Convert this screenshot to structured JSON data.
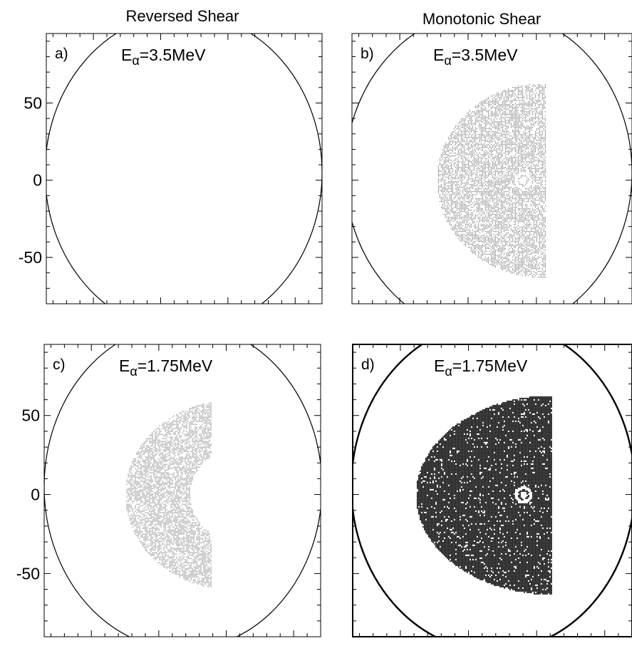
{
  "column_titles": [
    "Reversed Shear",
    "Monotonic Shear"
  ],
  "chart_data": [
    {
      "type": "scatter",
      "panel_label": "a)",
      "column": "Reversed Shear",
      "energy_label": {
        "prefix": "E",
        "subscript": "α",
        "suffix": "=3.5MeV"
      },
      "xlim": [
        165,
        370
      ],
      "ylim": [
        -80,
        95
      ],
      "xticks": [
        200,
        250,
        300,
        350
      ],
      "yticks": [
        -50,
        0,
        50
      ],
      "x_tick_labels_shown": false,
      "y_tick_labels_shown": true,
      "boundary_circle": {
        "center": [
          267,
          5
        ],
        "radius": 103
      },
      "lost_particle_region": null
    },
    {
      "type": "scatter",
      "panel_label": "b)",
      "column": "Monotonic Shear",
      "energy_label": {
        "prefix": "E",
        "subscript": "α",
        "suffix": "=3.5MeV"
      },
      "xlim": [
        165,
        370
      ],
      "ylim": [
        -80,
        95
      ],
      "xticks": [
        200,
        250,
        300,
        350
      ],
      "yticks": [
        -50,
        0,
        50
      ],
      "x_tick_labels_shown": false,
      "y_tick_labels_shown": false,
      "boundary_circle": {
        "center": [
          265,
          5
        ],
        "radius": 105
      },
      "lost_particle_region": {
        "shape": "half-disk",
        "center": [
          305,
          0
        ],
        "rx": 78,
        "ry": 63,
        "x_max": 307,
        "density": "light",
        "hole_center": [
          290,
          0
        ]
      }
    },
    {
      "type": "scatter",
      "panel_label": "c)",
      "column": "Reversed Shear",
      "energy_label": {
        "prefix": "E",
        "subscript": "α",
        "suffix": "=1.75MeV"
      },
      "xlim": [
        165,
        370
      ],
      "ylim": [
        -90,
        95
      ],
      "xticks": [
        200,
        250,
        300,
        350
      ],
      "yticks": [
        -50,
        0,
        50
      ],
      "x_tick_labels_shown": true,
      "y_tick_labels_shown": true,
      "boundary_circle": {
        "center": [
          268,
          5
        ],
        "radius": 103
      },
      "lost_particle_region": {
        "shape": "crescent",
        "center": [
          305,
          0
        ],
        "rx_outer": 80,
        "ry_outer": 60,
        "rx_inner": 32,
        "ry_inner": 28,
        "x_max": 289,
        "density": "light"
      }
    },
    {
      "type": "scatter",
      "panel_label": "d)",
      "column": "Monotonic Shear",
      "energy_label": {
        "prefix": "E",
        "subscript": "α",
        "suffix": "=1.75MeV"
      },
      "xlim": [
        165,
        370
      ],
      "ylim": [
        -90,
        95
      ],
      "xticks": [
        200,
        250,
        300,
        350
      ],
      "yticks": [
        -50,
        0,
        50
      ],
      "x_tick_labels_shown": true,
      "y_tick_labels_shown": false,
      "boundary_circle": {
        "center": [
          268,
          5
        ],
        "radius": 104
      },
      "lost_particle_region": {
        "shape": "half-disk",
        "center": [
          311,
          0
        ],
        "rx": 100,
        "ry": 63,
        "x_max": 311,
        "density": "dense",
        "hole_center": [
          290,
          0
        ]
      }
    }
  ]
}
